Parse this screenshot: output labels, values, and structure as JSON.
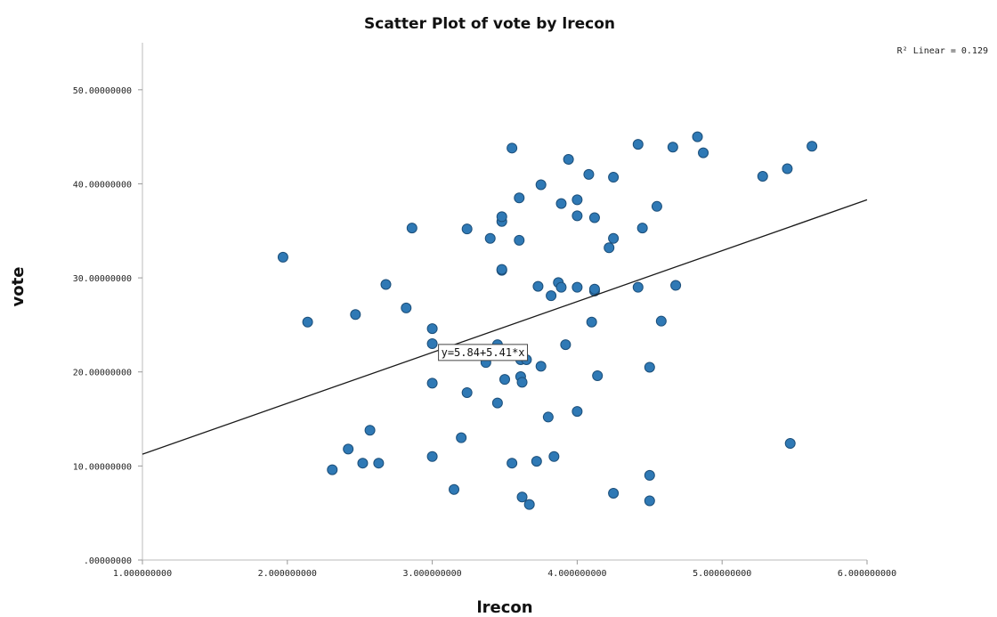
{
  "chart_data": {
    "type": "scatter",
    "title": "Scatter Plot of vote by lrecon",
    "xlabel": "lrecon",
    "ylabel": "vote",
    "xlim": [
      1.0,
      6.0
    ],
    "ylim": [
      0,
      55
    ],
    "x_ticks": [
      {
        "value": 1,
        "label": "1.000000000"
      },
      {
        "value": 2,
        "label": "2.000000000"
      },
      {
        "value": 3,
        "label": "3.000000000"
      },
      {
        "value": 4,
        "label": "4.000000000"
      },
      {
        "value": 5,
        "label": "5.000000000"
      },
      {
        "value": 6,
        "label": "6.000000000"
      }
    ],
    "y_ticks": [
      {
        "value": 0,
        "label": ".00000000"
      },
      {
        "value": 10,
        "label": "10.00000000"
      },
      {
        "value": 20,
        "label": "20.00000000"
      },
      {
        "value": 30,
        "label": "30.00000000"
      },
      {
        "value": 40,
        "label": "40.00000000"
      },
      {
        "value": 50,
        "label": "50.00000000"
      }
    ],
    "grid": false,
    "point_color": "#2f79b5",
    "point_edge_color": "#1c4f7a",
    "fit_line": {
      "intercept": 5.84,
      "slope": 5.41,
      "equation_label": "y=5.84+5.41*x",
      "equation_anchor_x": 3.0,
      "r2_label": "R² Linear = 0.129"
    },
    "points": [
      [
        1.97,
        32.2
      ],
      [
        2.14,
        25.3
      ],
      [
        2.31,
        9.6
      ],
      [
        2.42,
        11.8
      ],
      [
        2.47,
        26.1
      ],
      [
        2.52,
        10.3
      ],
      [
        2.57,
        13.8
      ],
      [
        2.63,
        10.3
      ],
      [
        2.68,
        29.3
      ],
      [
        2.82,
        26.8
      ],
      [
        2.86,
        35.3
      ],
      [
        3.0,
        18.8
      ],
      [
        3.0,
        11.0
      ],
      [
        3.0,
        23.0
      ],
      [
        3.0,
        24.6
      ],
      [
        3.15,
        7.5
      ],
      [
        3.2,
        13.0
      ],
      [
        3.24,
        17.8
      ],
      [
        3.24,
        35.2
      ],
      [
        3.37,
        21.0
      ],
      [
        3.4,
        34.2
      ],
      [
        3.45,
        16.7
      ],
      [
        3.45,
        22.9
      ],
      [
        3.48,
        36.0
      ],
      [
        3.48,
        36.5
      ],
      [
        3.48,
        30.8
      ],
      [
        3.48,
        30.9
      ],
      [
        3.5,
        19.2
      ],
      [
        3.55,
        43.8
      ],
      [
        3.55,
        10.3
      ],
      [
        3.6,
        34.0
      ],
      [
        3.6,
        38.5
      ],
      [
        3.61,
        21.3
      ],
      [
        3.61,
        19.5
      ],
      [
        3.62,
        18.9
      ],
      [
        3.62,
        6.7
      ],
      [
        3.65,
        21.3
      ],
      [
        3.67,
        5.9
      ],
      [
        3.72,
        10.5
      ],
      [
        3.73,
        29.1
      ],
      [
        3.75,
        39.9
      ],
      [
        3.75,
        20.6
      ],
      [
        3.8,
        15.2
      ],
      [
        3.82,
        28.1
      ],
      [
        3.84,
        11.0
      ],
      [
        3.87,
        29.5
      ],
      [
        3.89,
        37.9
      ],
      [
        3.89,
        29.0
      ],
      [
        3.92,
        22.9
      ],
      [
        3.94,
        42.6
      ],
      [
        4.0,
        38.3
      ],
      [
        4.0,
        36.6
      ],
      [
        4.0,
        29.0
      ],
      [
        4.0,
        15.8
      ],
      [
        4.08,
        41.0
      ],
      [
        4.1,
        25.3
      ],
      [
        4.12,
        36.4
      ],
      [
        4.12,
        28.6
      ],
      [
        4.12,
        28.8
      ],
      [
        4.14,
        19.6
      ],
      [
        4.22,
        33.2
      ],
      [
        4.25,
        34.2
      ],
      [
        4.25,
        40.7
      ],
      [
        4.25,
        7.1
      ],
      [
        4.42,
        44.2
      ],
      [
        4.42,
        29.0
      ],
      [
        4.45,
        35.3
      ],
      [
        4.5,
        20.5
      ],
      [
        4.5,
        9.0
      ],
      [
        4.5,
        6.3
      ],
      [
        4.55,
        37.6
      ],
      [
        4.58,
        25.4
      ],
      [
        4.66,
        43.9
      ],
      [
        4.68,
        29.2
      ],
      [
        4.83,
        45.0
      ],
      [
        4.87,
        43.3
      ],
      [
        5.28,
        40.8
      ],
      [
        5.45,
        41.6
      ],
      [
        5.47,
        12.4
      ],
      [
        5.62,
        44.0
      ]
    ]
  }
}
